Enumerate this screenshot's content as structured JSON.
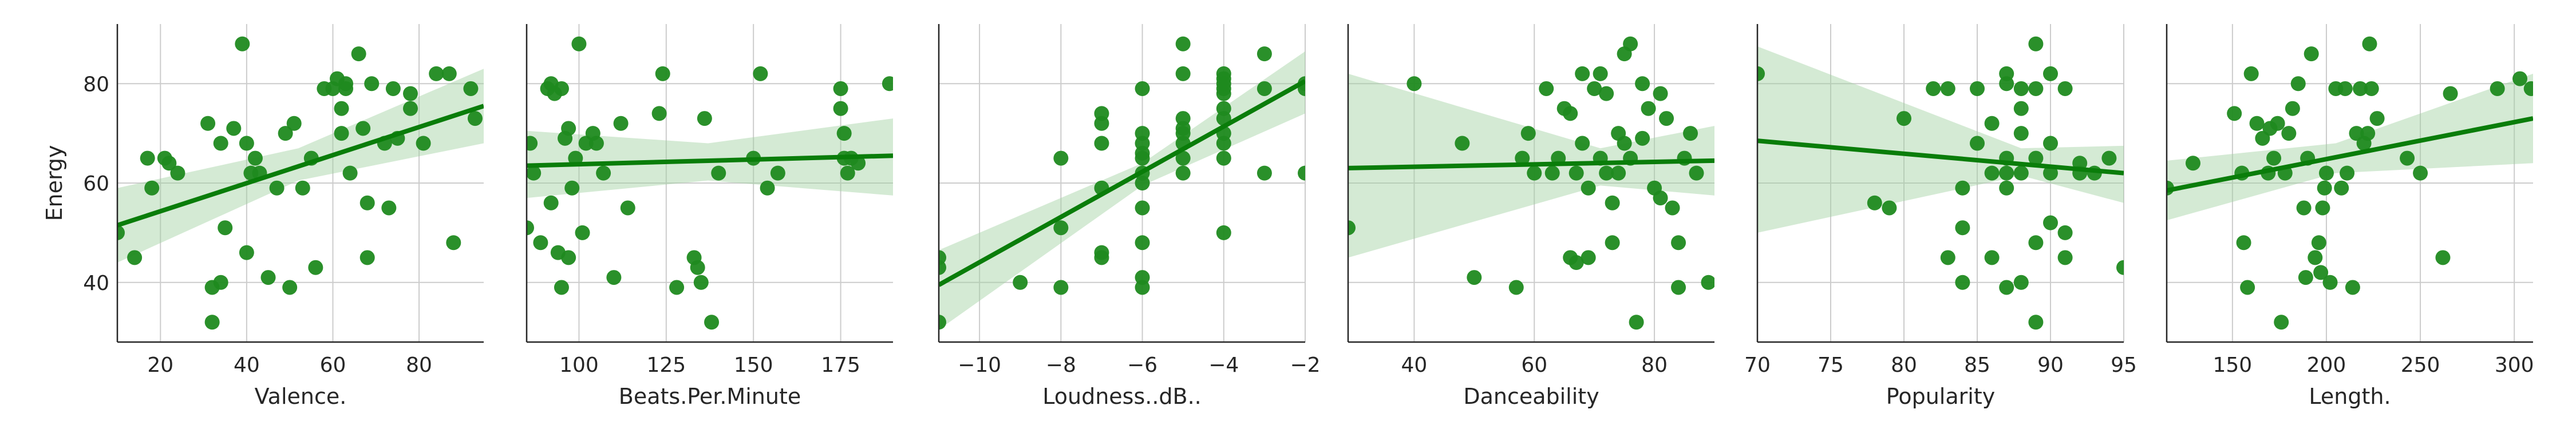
{
  "figure": {
    "point_color": "#1f8a1f",
    "line_color": "#0a7d0a",
    "band_color": "#9fd19f",
    "grid_color": "#cccccc",
    "axis_color": "#262626"
  },
  "chart_data": [
    {
      "type": "scatter",
      "xlabel": "Valence.",
      "ylabel": "Energy",
      "xlim": [
        10,
        95
      ],
      "ylim": [
        28,
        92
      ],
      "xticks": [
        20,
        40,
        60,
        80
      ],
      "yticks": [
        40,
        60,
        80
      ],
      "regression": {
        "x": [
          10,
          95
        ],
        "y": [
          51.5,
          75.5
        ]
      },
      "ci": {
        "x": [
          10,
          52,
          95
        ],
        "lower": [
          44,
          60.5,
          68
        ],
        "upper": [
          59,
          67,
          83
        ]
      },
      "points": [
        [
          10,
          50
        ],
        [
          14,
          45
        ],
        [
          17,
          65
        ],
        [
          18,
          59
        ],
        [
          21,
          65
        ],
        [
          22,
          64
        ],
        [
          24,
          62
        ],
        [
          31,
          72
        ],
        [
          32,
          39
        ],
        [
          32,
          32
        ],
        [
          34,
          40
        ],
        [
          34,
          68
        ],
        [
          35,
          51
        ],
        [
          37,
          71
        ],
        [
          39,
          88
        ],
        [
          40,
          46
        ],
        [
          40,
          68
        ],
        [
          41,
          62
        ],
        [
          42,
          65
        ],
        [
          43,
          62
        ],
        [
          45,
          41
        ],
        [
          47,
          59
        ],
        [
          49,
          70
        ],
        [
          50,
          39
        ],
        [
          51,
          72
        ],
        [
          53,
          59
        ],
        [
          55,
          65
        ],
        [
          56,
          43
        ],
        [
          58,
          79
        ],
        [
          60,
          79
        ],
        [
          61,
          81
        ],
        [
          62,
          70
        ],
        [
          62,
          75
        ],
        [
          63,
          80
        ],
        [
          63,
          79
        ],
        [
          64,
          62
        ],
        [
          66,
          86
        ],
        [
          67,
          71
        ],
        [
          68,
          56
        ],
        [
          68,
          45
        ],
        [
          69,
          80
        ],
        [
          72,
          68
        ],
        [
          73,
          55
        ],
        [
          74,
          79
        ],
        [
          75,
          69
        ],
        [
          78,
          75
        ],
        [
          78,
          78
        ],
        [
          81,
          68
        ],
        [
          84,
          82
        ],
        [
          87,
          82
        ],
        [
          88,
          48
        ],
        [
          92,
          79
        ],
        [
          93,
          73
        ]
      ]
    },
    {
      "type": "scatter",
      "xlabel": "Beats.Per.Minute",
      "ylabel": "",
      "xlim": [
        85,
        190
      ],
      "ylim": [
        28,
        92
      ],
      "xticks": [
        100,
        125,
        150,
        175
      ],
      "yticks": [
        40,
        60,
        80
      ],
      "regression": {
        "x": [
          85,
          190
        ],
        "y": [
          63.5,
          65.5
        ]
      },
      "ci": {
        "x": [
          85,
          137,
          190
        ],
        "lower": [
          57,
          60.5,
          57.5
        ],
        "upper": [
          70.5,
          68,
          73
        ]
      },
      "points": [
        [
          85,
          51
        ],
        [
          86,
          68
        ],
        [
          87,
          62
        ],
        [
          89,
          48
        ],
        [
          91,
          79
        ],
        [
          92,
          80
        ],
        [
          92,
          56
        ],
        [
          93,
          78
        ],
        [
          94,
          46
        ],
        [
          95,
          79
        ],
        [
          95,
          39
        ],
        [
          96,
          69
        ],
        [
          97,
          71
        ],
        [
          97,
          45
        ],
        [
          98,
          59
        ],
        [
          99,
          65
        ],
        [
          100,
          88
        ],
        [
          101,
          50
        ],
        [
          102,
          68
        ],
        [
          104,
          70
        ],
        [
          105,
          68
        ],
        [
          107,
          62
        ],
        [
          110,
          41
        ],
        [
          112,
          72
        ],
        [
          114,
          55
        ],
        [
          123,
          74
        ],
        [
          124,
          82
        ],
        [
          128,
          39
        ],
        [
          133,
          45
        ],
        [
          134,
          43
        ],
        [
          135,
          40
        ],
        [
          136,
          73
        ],
        [
          138,
          32
        ],
        [
          140,
          62
        ],
        [
          150,
          65
        ],
        [
          152,
          82
        ],
        [
          154,
          59
        ],
        [
          157,
          62
        ],
        [
          175,
          79
        ],
        [
          175,
          75
        ],
        [
          176,
          70
        ],
        [
          176,
          65
        ],
        [
          177,
          62
        ],
        [
          178,
          65
        ],
        [
          180,
          64
        ],
        [
          189,
          80
        ]
      ]
    },
    {
      "type": "scatter",
      "xlabel": "Loudness..dB..",
      "ylabel": "",
      "xlim": [
        -11,
        -2
      ],
      "ylim": [
        28,
        92
      ],
      "xticks": [
        -10,
        -8,
        -6,
        -4,
        -2
      ],
      "yticks": [
        40,
        60,
        80
      ],
      "regression": {
        "x": [
          -11,
          -2
        ],
        "y": [
          39.5,
          80.5
        ]
      },
      "ci": {
        "x": [
          -11,
          -6,
          -2
        ],
        "lower": [
          30.5,
          59.5,
          74
        ],
        "upper": [
          46.5,
          64,
          86.5
        ]
      },
      "points": [
        [
          -11,
          45
        ],
        [
          -11,
          43
        ],
        [
          -11,
          32
        ],
        [
          -9,
          40
        ],
        [
          -8,
          65
        ],
        [
          -8,
          51
        ],
        [
          -8,
          39
        ],
        [
          -7,
          74
        ],
        [
          -7,
          72
        ],
        [
          -7,
          68
        ],
        [
          -7,
          59
        ],
        [
          -7,
          46
        ],
        [
          -7,
          45
        ],
        [
          -6,
          79
        ],
        [
          -6,
          70
        ],
        [
          -6,
          68
        ],
        [
          -6,
          66
        ],
        [
          -6,
          65
        ],
        [
          -6,
          62
        ],
        [
          -6,
          60
        ],
        [
          -6,
          55
        ],
        [
          -6,
          48
        ],
        [
          -6,
          41
        ],
        [
          -6,
          39
        ],
        [
          -5,
          88
        ],
        [
          -5,
          82
        ],
        [
          -5,
          73
        ],
        [
          -5,
          71
        ],
        [
          -5,
          70
        ],
        [
          -5,
          68
        ],
        [
          -5,
          65
        ],
        [
          -5,
          62
        ],
        [
          -4,
          82
        ],
        [
          -4,
          81
        ],
        [
          -4,
          80
        ],
        [
          -4,
          79
        ],
        [
          -4,
          78
        ],
        [
          -4,
          75
        ],
        [
          -4,
          73
        ],
        [
          -4,
          70
        ],
        [
          -4,
          68
        ],
        [
          -4,
          65
        ],
        [
          -4,
          50
        ],
        [
          -3,
          86
        ],
        [
          -3,
          79
        ],
        [
          -3,
          62
        ],
        [
          -2,
          80
        ],
        [
          -2,
          79
        ],
        [
          -2,
          62
        ]
      ]
    },
    {
      "type": "scatter",
      "xlabel": "Danceability",
      "ylabel": "",
      "xlim": [
        29,
        90
      ],
      "ylim": [
        28,
        92
      ],
      "xticks": [
        40,
        60,
        80
      ],
      "yticks": [
        40,
        60,
        80
      ],
      "regression": {
        "x": [
          29,
          90
        ],
        "y": [
          63,
          64.5
        ]
      },
      "ci": {
        "x": [
          29,
          71,
          90
        ],
        "lower": [
          45,
          59.5,
          57.5
        ],
        "upper": [
          82,
          67,
          71.5
        ]
      },
      "points": [
        [
          29,
          51
        ],
        [
          40,
          80
        ],
        [
          48,
          68
        ],
        [
          50,
          41
        ],
        [
          57,
          39
        ],
        [
          58,
          65
        ],
        [
          59,
          70
        ],
        [
          60,
          62
        ],
        [
          62,
          79
        ],
        [
          63,
          62
        ],
        [
          64,
          65
        ],
        [
          65,
          75
        ],
        [
          66,
          74
        ],
        [
          66,
          45
        ],
        [
          67,
          62
        ],
        [
          67,
          44
        ],
        [
          68,
          82
        ],
        [
          68,
          68
        ],
        [
          69,
          59
        ],
        [
          69,
          45
        ],
        [
          70,
          79
        ],
        [
          71,
          82
        ],
        [
          71,
          65
        ],
        [
          72,
          62
        ],
        [
          72,
          78
        ],
        [
          73,
          56
        ],
        [
          73,
          48
        ],
        [
          74,
          70
        ],
        [
          74,
          62
        ],
        [
          75,
          86
        ],
        [
          75,
          68
        ],
        [
          76,
          88
        ],
        [
          76,
          65
        ],
        [
          77,
          32
        ],
        [
          78,
          80
        ],
        [
          78,
          69
        ],
        [
          79,
          75
        ],
        [
          80,
          59
        ],
        [
          81,
          78
        ],
        [
          81,
          57
        ],
        [
          82,
          73
        ],
        [
          83,
          55
        ],
        [
          84,
          39
        ],
        [
          84,
          48
        ],
        [
          85,
          65
        ],
        [
          86,
          70
        ],
        [
          87,
          62
        ],
        [
          89,
          40
        ]
      ]
    },
    {
      "type": "scatter",
      "xlabel": "Popularity",
      "ylabel": "",
      "xlim": [
        70,
        95
      ],
      "ylim": [
        28,
        92
      ],
      "xticks": [
        70,
        75,
        80,
        85,
        90,
        95
      ],
      "yticks": [
        40,
        60,
        80
      ],
      "regression": {
        "x": [
          70,
          95
        ],
        "y": [
          68.5,
          62
        ]
      },
      "ci": {
        "x": [
          70,
          88,
          95
        ],
        "lower": [
          50,
          61.5,
          56
        ],
        "upper": [
          87.5,
          67,
          67.5
        ]
      },
      "points": [
        [
          70,
          82
        ],
        [
          78,
          56
        ],
        [
          79,
          55
        ],
        [
          80,
          73
        ],
        [
          82,
          79
        ],
        [
          83,
          45
        ],
        [
          83,
          79
        ],
        [
          84,
          59
        ],
        [
          84,
          51
        ],
        [
          84,
          40
        ],
        [
          85,
          79
        ],
        [
          85,
          68
        ],
        [
          86,
          62
        ],
        [
          86,
          45
        ],
        [
          86,
          72
        ],
        [
          87,
          82
        ],
        [
          87,
          80
        ],
        [
          87,
          65
        ],
        [
          87,
          62
        ],
        [
          87,
          59
        ],
        [
          87,
          39
        ],
        [
          88,
          79
        ],
        [
          88,
          75
        ],
        [
          88,
          70
        ],
        [
          88,
          62
        ],
        [
          88,
          40
        ],
        [
          89,
          88
        ],
        [
          89,
          79
        ],
        [
          89,
          65
        ],
        [
          89,
          48
        ],
        [
          89,
          32
        ],
        [
          90,
          82
        ],
        [
          90,
          68
        ],
        [
          90,
          62
        ],
        [
          90,
          52
        ],
        [
          91,
          79
        ],
        [
          91,
          50
        ],
        [
          91,
          45
        ],
        [
          92,
          64
        ],
        [
          92,
          62
        ],
        [
          93,
          62
        ],
        [
          94,
          65
        ],
        [
          95,
          43
        ]
      ]
    },
    {
      "type": "scatter",
      "xlabel": "Length.",
      "ylabel": "",
      "xlim": [
        115,
        310
      ],
      "ylim": [
        28,
        92
      ],
      "xticks": [
        150,
        200,
        250,
        300
      ],
      "yticks": [
        40,
        60,
        80
      ],
      "regression": {
        "x": [
          115,
          310
        ],
        "y": [
          58.5,
          73
        ]
      },
      "ci": {
        "x": [
          115,
          205,
          310
        ],
        "lower": [
          52.5,
          62,
          64
        ],
        "upper": [
          64.5,
          68,
          82
        ]
      },
      "points": [
        [
          115,
          59
        ],
        [
          129,
          64
        ],
        [
          151,
          74
        ],
        [
          155,
          62
        ],
        [
          156,
          48
        ],
        [
          158,
          39
        ],
        [
          160,
          82
        ],
        [
          163,
          72
        ],
        [
          166,
          69
        ],
        [
          169,
          62
        ],
        [
          170,
          71
        ],
        [
          172,
          65
        ],
        [
          174,
          72
        ],
        [
          176,
          32
        ],
        [
          178,
          62
        ],
        [
          180,
          70
        ],
        [
          182,
          75
        ],
        [
          185,
          80
        ],
        [
          188,
          55
        ],
        [
          189,
          41
        ],
        [
          190,
          65
        ],
        [
          192,
          86
        ],
        [
          194,
          45
        ],
        [
          196,
          48
        ],
        [
          197,
          42
        ],
        [
          198,
          55
        ],
        [
          199,
          59
        ],
        [
          200,
          62
        ],
        [
          202,
          40
        ],
        [
          205,
          79
        ],
        [
          208,
          59
        ],
        [
          210,
          79
        ],
        [
          211,
          62
        ],
        [
          214,
          39
        ],
        [
          216,
          70
        ],
        [
          218,
          79
        ],
        [
          220,
          68
        ],
        [
          222,
          70
        ],
        [
          223,
          88
        ],
        [
          224,
          79
        ],
        [
          227,
          73
        ],
        [
          243,
          65
        ],
        [
          250,
          62
        ],
        [
          262,
          45
        ],
        [
          266,
          78
        ],
        [
          291,
          79
        ],
        [
          303,
          81
        ],
        [
          309,
          79
        ]
      ]
    }
  ]
}
